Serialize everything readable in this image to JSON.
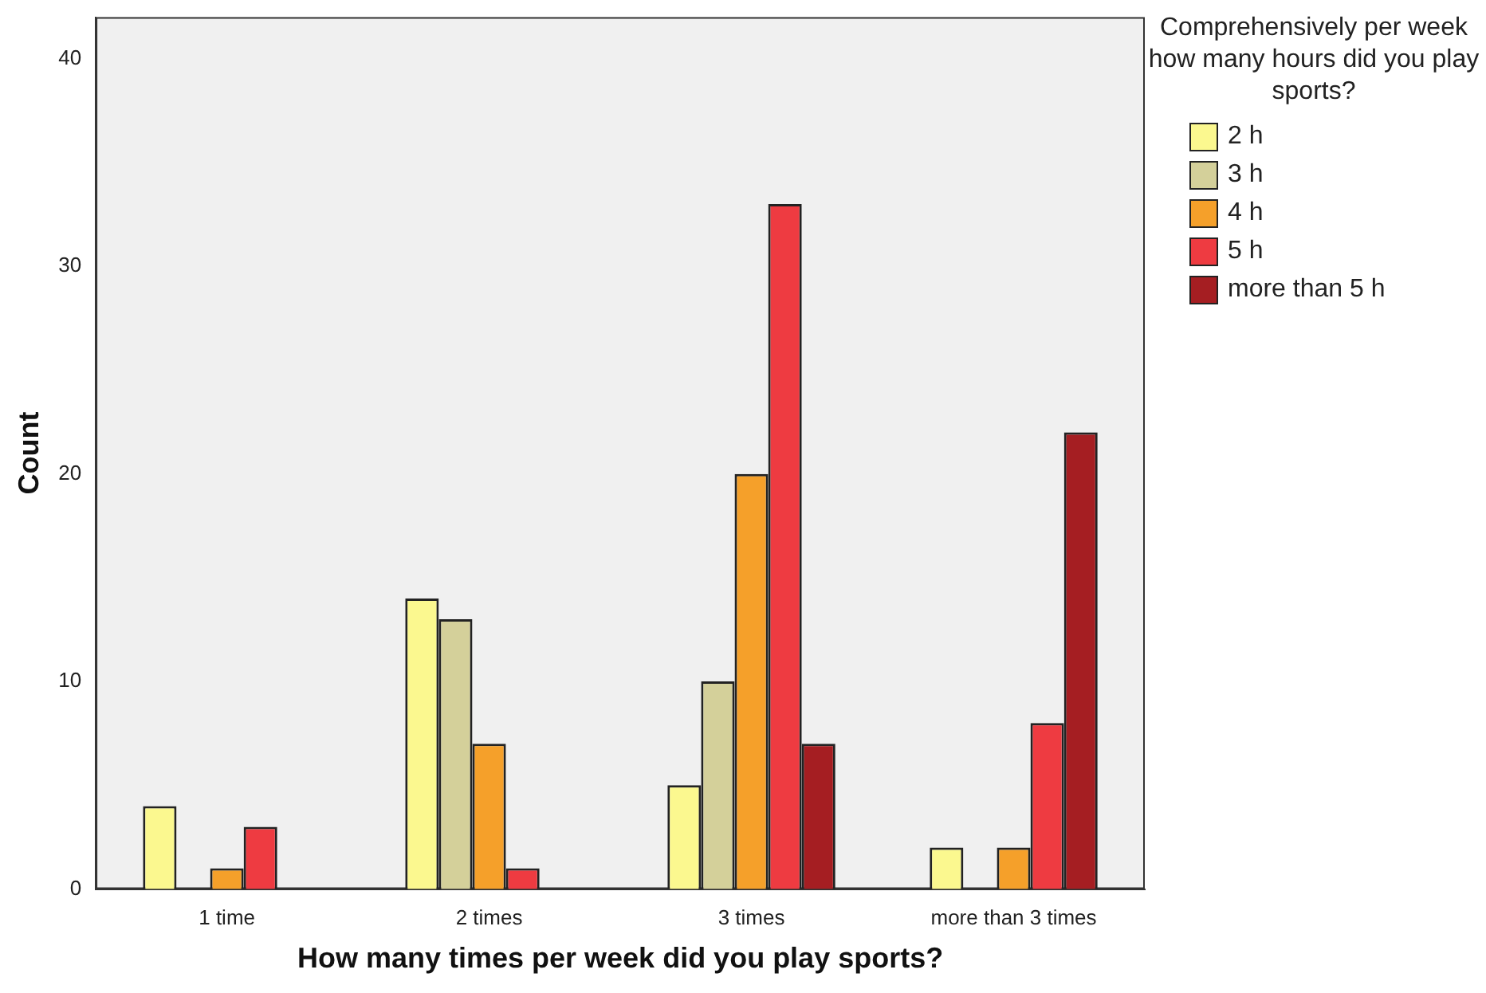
{
  "chart_data": {
    "type": "bar",
    "xlabel": "How many times per week did you play sports?",
    "ylabel": "Count",
    "legend_title": "Comprehensively per week how many hours did you play sports?",
    "categories": [
      "1 time",
      "2 times",
      "3 times",
      "more than 3 times"
    ],
    "series": [
      {
        "name": "2 h",
        "color": "#fbf88f",
        "values": [
          4,
          14,
          5,
          2
        ]
      },
      {
        "name": "3 h",
        "color": "#d4d09a",
        "values": [
          0,
          13,
          10,
          0
        ]
      },
      {
        "name": "4 h",
        "color": "#f5a02a",
        "values": [
          1,
          7,
          20,
          2
        ]
      },
      {
        "name": "5 h",
        "color": "#ee3b41",
        "values": [
          3,
          1,
          33,
          8
        ]
      },
      {
        "name": "more than 5 h",
        "color": "#a51e22",
        "values": [
          0,
          0,
          7,
          22
        ]
      }
    ],
    "ylim": [
      0,
      42
    ],
    "yticks": [
      0,
      10,
      20,
      30,
      40
    ],
    "grid": false,
    "legend": "top right"
  }
}
